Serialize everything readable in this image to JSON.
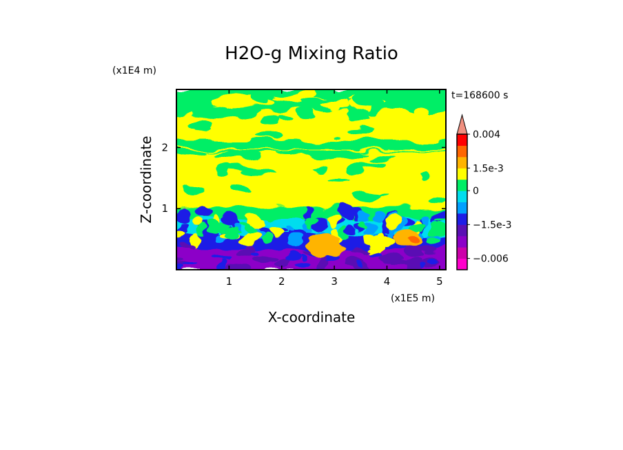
{
  "chart_data": {
    "type": "heatmap",
    "title": "H2O-g Mixing Ratio",
    "xlabel": "X-coordinate",
    "ylabel": "Z-coordinate",
    "x_multiplier_label": "(x1E5 m)",
    "y_multiplier_label": "(x1E4 m)",
    "time_label": "t=168600 s",
    "xlim": [
      0,
      5.12
    ],
    "ylim": [
      0,
      2.95
    ],
    "x_ticks": [
      "1",
      "2",
      "3",
      "4",
      "5"
    ],
    "x_tick_values": [
      1,
      2,
      3,
      4,
      5
    ],
    "y_ticks": [
      "1",
      "2"
    ],
    "y_tick_values": [
      1,
      2
    ],
    "grid": false,
    "colorbar": {
      "position": "right",
      "extend": "max",
      "labels": [
        "0.004",
        "1.5e-3",
        "0",
        "−1.5e-3",
        "−0.006"
      ],
      "label_values": [
        0.004,
        0.0015,
        0,
        -0.0015,
        -0.006
      ],
      "levels": [
        {
          "value": -0.009,
          "color": "#ff00cc"
        },
        {
          "value": -0.006,
          "color": "#cc00aa"
        },
        {
          "value": -0.004,
          "color": "#8c00c8"
        },
        {
          "value": -0.0022,
          "color": "#5a10b4"
        },
        {
          "value": -0.0015,
          "color": "#1e1ee6"
        },
        {
          "value": -0.001,
          "color": "#00a0ff"
        },
        {
          "value": -0.0005,
          "color": "#00ddee"
        },
        {
          "value": 0,
          "color": "#00ee66"
        },
        {
          "value": 0.0005,
          "color": "#ffff00"
        },
        {
          "value": 0.0015,
          "color": "#ffb400"
        },
        {
          "value": 0.0025,
          "color": "#ff6600"
        },
        {
          "value": 0.003,
          "color": "#ff0000"
        },
        {
          "value": 0.004,
          "color": "#f09080"
        }
      ]
    },
    "regions": [
      {
        "name": "upper",
        "z_range": [
          2.0,
          2.95
        ],
        "dominant": "mix of 0 and 5e-4 levels",
        "colors": [
          "#00ee66",
          "#ffff00"
        ]
      },
      {
        "name": "middle",
        "z_range": [
          1.0,
          1.9
        ],
        "dominant": "5e-4 level",
        "colors": [
          "#ffff00"
        ]
      },
      {
        "name": "lower",
        "z_range": [
          0.3,
          1.0
        ],
        "dominant": "-1.5e-3 to 0 levels",
        "colors": [
          "#00ddee",
          "#1e1ee6",
          "#00ee66"
        ]
      },
      {
        "name": "surface",
        "z_range": [
          0,
          0.3
        ],
        "dominant": "-0.004 to -0.0022 levels",
        "colors": [
          "#8c00c8",
          "#5a10b4"
        ]
      },
      {
        "name": "orange-patch-1",
        "x_range": [
          2.5,
          3.2
        ],
        "z_range": [
          0.2,
          0.6
        ],
        "colors": [
          "#ffb400"
        ]
      },
      {
        "name": "orange-patch-2",
        "x_range": [
          4.0,
          4.9
        ],
        "z_range": [
          0.3,
          0.65
        ],
        "colors": [
          "#ffb400",
          "#ff6600"
        ]
      }
    ]
  }
}
